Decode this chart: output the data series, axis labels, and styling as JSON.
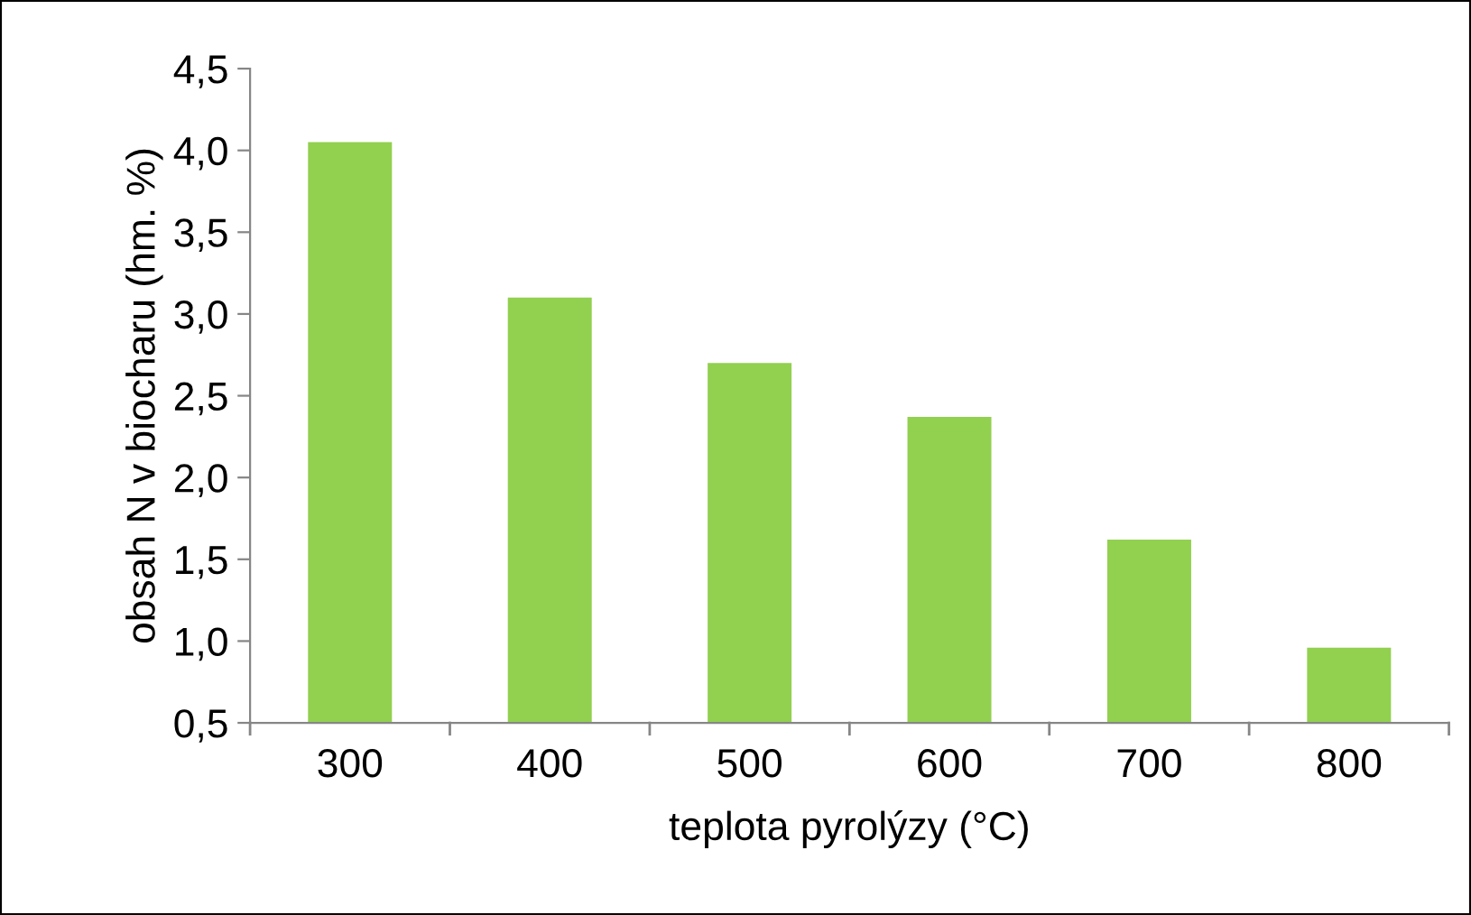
{
  "chart_data": {
    "type": "bar",
    "xlabel": "teplota pyrolýzy (°C)",
    "ylabel": "obsah N v biocharu (hm. %)",
    "categories": [
      "300",
      "400",
      "500",
      "600",
      "700",
      "800"
    ],
    "values": [
      4.05,
      3.1,
      2.7,
      2.37,
      1.62,
      0.96
    ],
    "color": "#92d050",
    "ylim": [
      0.5,
      4.5
    ],
    "yticks": [
      {
        "value": 0.5,
        "label": "0,5"
      },
      {
        "value": 1.0,
        "label": "1,0"
      },
      {
        "value": 1.5,
        "label": "1,5"
      },
      {
        "value": 2.0,
        "label": "2,0"
      },
      {
        "value": 2.5,
        "label": "2,5"
      },
      {
        "value": 3.0,
        "label": "3,0"
      },
      {
        "value": 3.5,
        "label": "3,5"
      },
      {
        "value": 4.0,
        "label": "4,0"
      },
      {
        "value": 4.5,
        "label": "4,5"
      }
    ],
    "grid": false,
    "legend": false
  }
}
